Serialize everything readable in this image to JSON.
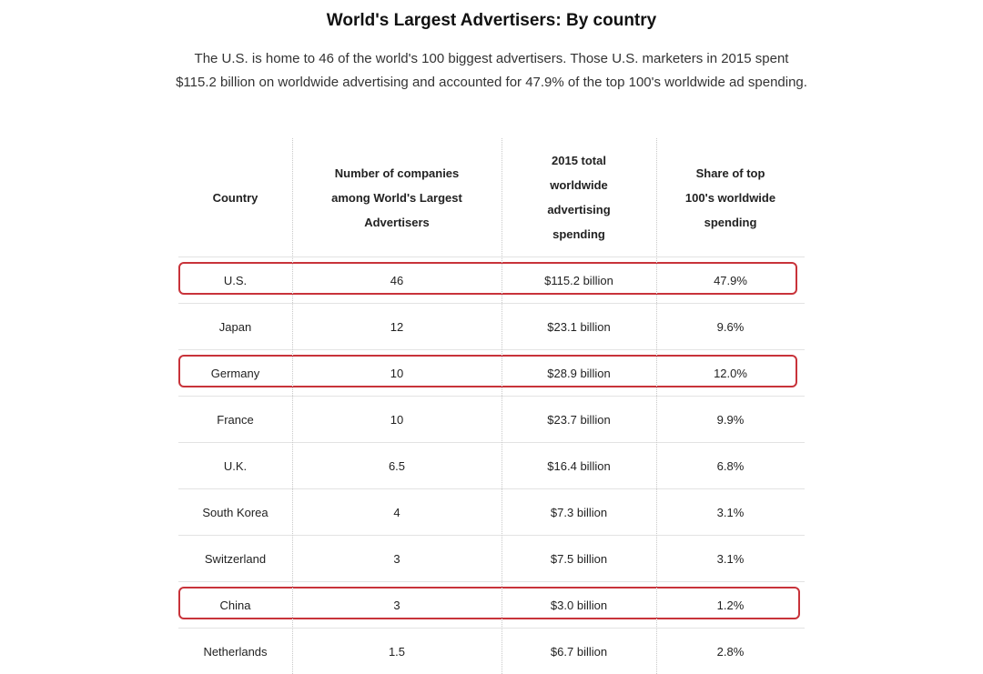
{
  "title": "World's Largest Advertisers: By country",
  "subtitle": "The U.S. is home to 46 of the world's 100 biggest advertisers. Those U.S. marketers in 2015 spent $115.2 billion on worldwide advertising and accounted for 47.9% of the top 100's worldwide ad spending.",
  "table": {
    "headers": [
      "Country",
      "Number of companies\namong World's Largest\nAdvertisers",
      "2015 total\nworldwide\nadvertising\nspending",
      "Share of top\n100's worldwide\nspending"
    ],
    "rows": [
      {
        "country": "U.S.",
        "companies": "46",
        "spending": "$115.2 billion",
        "share": "47.9%",
        "highlighted": true
      },
      {
        "country": "Japan",
        "companies": "12",
        "spending": "$23.1 billion",
        "share": "9.6%",
        "highlighted": false
      },
      {
        "country": "Germany",
        "companies": "10",
        "spending": "$28.9 billion",
        "share": "12.0%",
        "highlighted": true
      },
      {
        "country": "France",
        "companies": "10",
        "spending": "$23.7 billion",
        "share": "9.9%",
        "highlighted": false
      },
      {
        "country": "U.K.",
        "companies": "6.5",
        "spending": "$16.4 billion",
        "share": "6.8%",
        "highlighted": false
      },
      {
        "country": "South Korea",
        "companies": "4",
        "spending": "$7.3 billion",
        "share": "3.1%",
        "highlighted": false
      },
      {
        "country": "Switzerland",
        "companies": "3",
        "spending": "$7.5 billion",
        "share": "3.1%",
        "highlighted": false
      },
      {
        "country": "China",
        "companies": "3",
        "spending": "$3.0 billion",
        "share": "1.2%",
        "highlighted": true
      },
      {
        "country": "Netherlands",
        "companies": "1.5",
        "spending": "$6.7 billion",
        "share": "2.8%",
        "highlighted": false
      }
    ]
  },
  "colors": {
    "highlight_border": "#c8333a",
    "divider": "#e3e3e3"
  }
}
